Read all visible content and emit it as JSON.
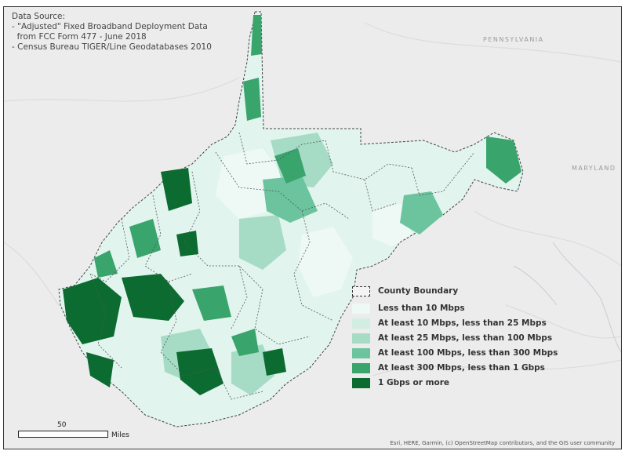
{
  "source_note": {
    "lines": [
      "Data Source:",
      "- \"Adjusted\" Fixed Broadband Deployment Data",
      "  from FCC Form 477 - June 2018",
      "- Census Bureau TIGER/Line Geodatabases 2010"
    ]
  },
  "map_labels": {
    "pennsylvania": "PENNSYLVANIA",
    "maryland": "MARYLAND"
  },
  "legend": {
    "county_boundary": "County Boundary",
    "classes": [
      {
        "label": "Less than 10 Mbps",
        "color": "#eef9f6"
      },
      {
        "label": "At least 10 Mbps, less than 25 Mbps",
        "color": "#d2eee3"
      },
      {
        "label": "At least 25 Mbps, less than 100 Mbps",
        "color": "#a6dcc6"
      },
      {
        "label": "At least 100 Mbps, less than 300 Mbps",
        "color": "#6cc49f"
      },
      {
        "label": "At least 300 Mbps, less than 1 Gbps",
        "color": "#3aa46d"
      },
      {
        "label": "1 Gbps or more",
        "color": "#0c6b30"
      }
    ]
  },
  "scale": {
    "value": "50",
    "unit": "Miles"
  },
  "attribution": "Esri, HERE, Garmin, (c) OpenStreetMap contributors, and the GIS user community"
}
